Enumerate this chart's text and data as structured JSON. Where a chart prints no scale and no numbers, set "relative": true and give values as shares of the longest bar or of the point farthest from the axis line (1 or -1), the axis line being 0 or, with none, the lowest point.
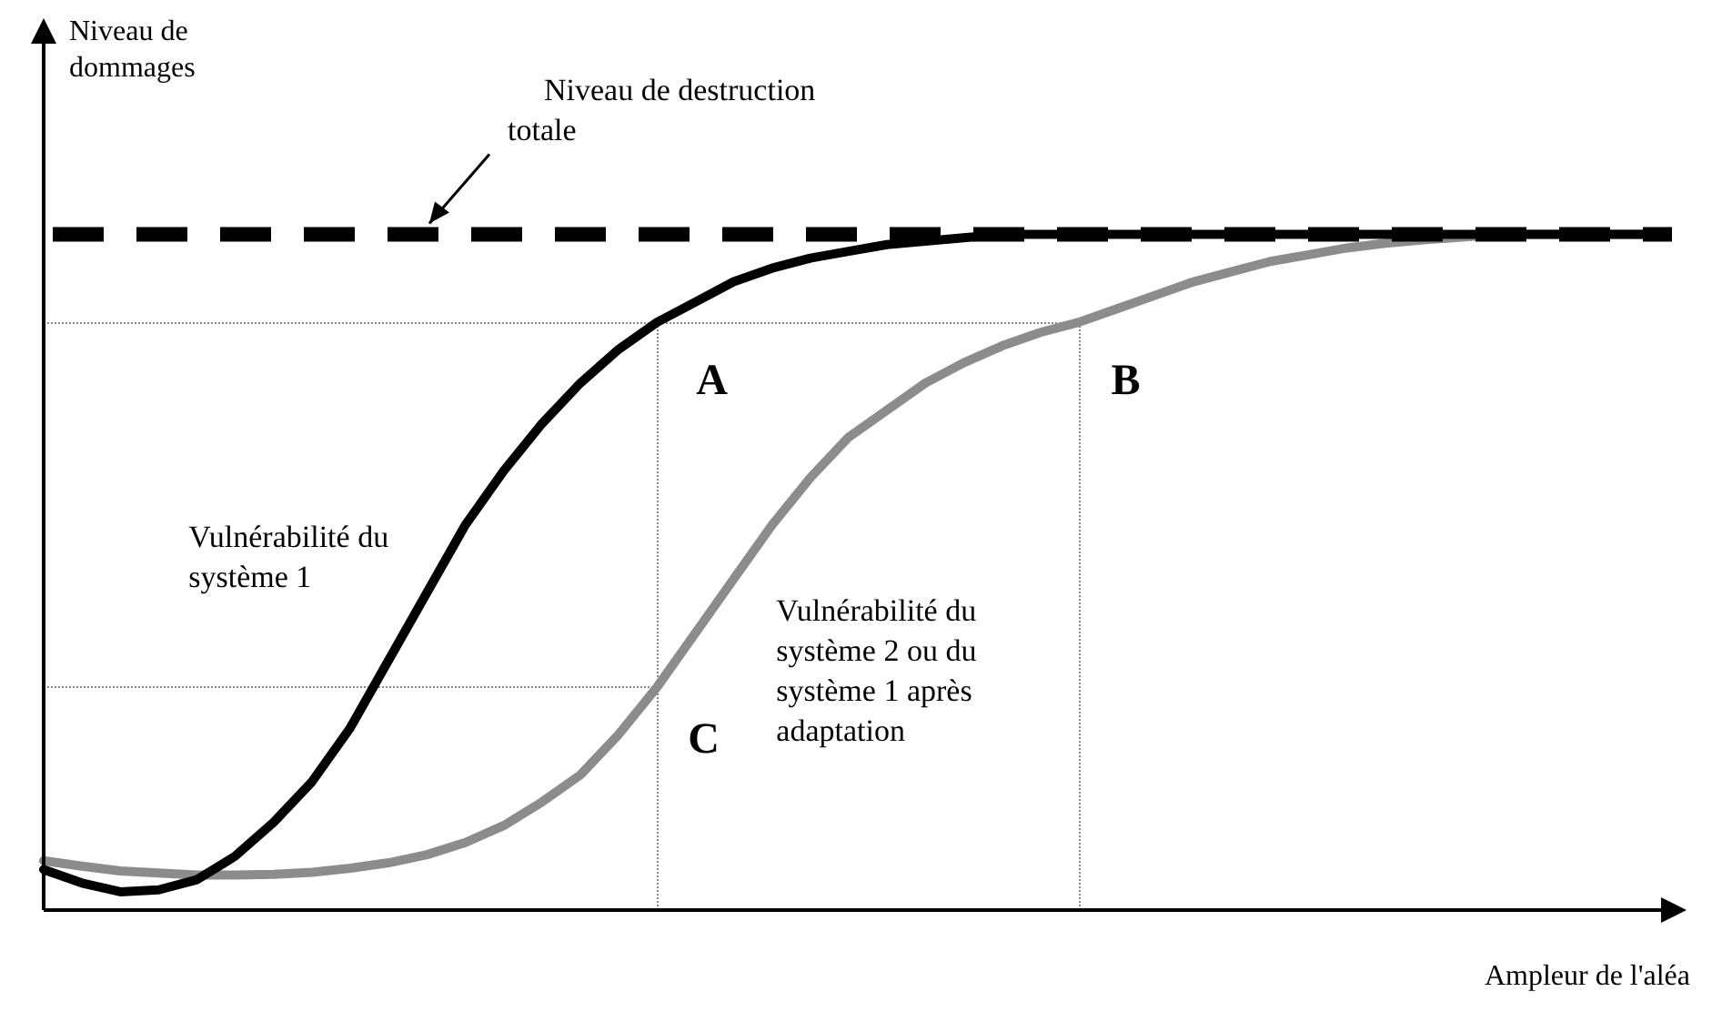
{
  "chart_data": {
    "type": "line",
    "relative": true,
    "xlabel": "Ampleur de l'aléa",
    "grid": false,
    "legend": false,
    "marker": "none",
    "line_style": "solid",
    "categories": [
      null,
      null,
      null,
      null,
      null,
      null,
      null,
      null,
      null,
      null,
      null,
      null,
      null,
      null,
      null,
      null,
      null,
      null,
      null,
      null,
      null,
      null,
      null,
      null,
      null,
      null,
      null,
      null,
      null,
      null,
      null,
      null,
      null,
      null,
      null,
      null,
      null,
      null,
      null,
      null,
      null,
      null,
      null
    ],
    "series": [
      {
        "name": "Vulnérabilité du système 1",
        "color": "#000000",
        "values": [
          0.06,
          0.04,
          0.027,
          0.03,
          0.045,
          0.08,
          0.13,
          0.19,
          0.27,
          0.37,
          0.47,
          0.57,
          0.65,
          0.72,
          0.78,
          0.83,
          0.87,
          0.9,
          0.93,
          0.95,
          0.965,
          0.975,
          0.985,
          0.99,
          0.995,
          1,
          1,
          1,
          1,
          1,
          1,
          1,
          1,
          1,
          1,
          1,
          1,
          1,
          1,
          1,
          1,
          1,
          1
        ]
      },
      {
        "name": "Vulnérabilité du système 2 ou du système 1 après adaptation",
        "color": "#8c8c8c",
        "values": [
          0.073,
          0.065,
          0.058,
          0.055,
          0.052,
          0.052,
          0.053,
          0.056,
          0.062,
          0.07,
          0.082,
          0.1,
          0.125,
          0.16,
          0.2,
          0.26,
          0.33,
          0.41,
          0.49,
          0.57,
          0.64,
          0.7,
          0.74,
          0.78,
          0.81,
          0.835,
          0.855,
          0.87,
          0.89,
          0.91,
          0.93,
          0.945,
          0.96,
          0.97,
          0.98,
          0.987,
          0.992,
          0.996,
          1,
          1,
          1,
          1,
          1
        ]
      }
    ],
    "ref_lines": [
      {
        "axis": "y",
        "value": 1,
        "label": "Niveau de destruction totale",
        "color": "#000000",
        "line_style": "dashed"
      }
    ],
    "annotations": [
      "Niveau de dommages",
      "A",
      "B",
      "C"
    ]
  }
}
